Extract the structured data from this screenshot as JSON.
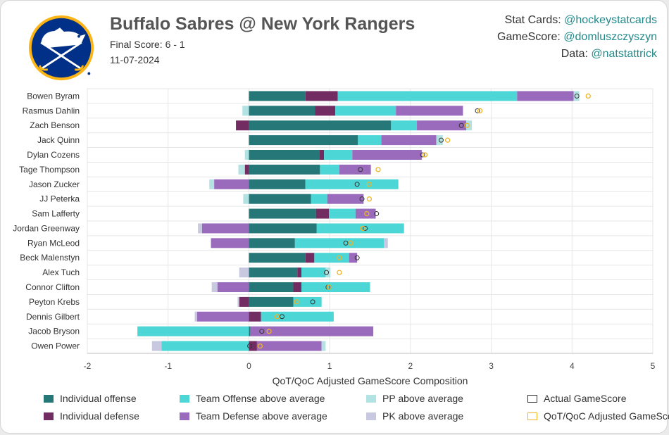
{
  "header": {
    "title": "Buffalo Sabres @ New York Rangers",
    "final_score": "Final Score: 6 - 1",
    "date": "11-07-2024"
  },
  "credits": [
    {
      "label": "Stat Cards: ",
      "handle": "@hockeystatcards"
    },
    {
      "label": "GameScore: ",
      "handle": "@domluszczyszyn"
    },
    {
      "label": "Data: ",
      "handle": "@natstattrick"
    }
  ],
  "colors": {
    "indiv_off": "#267878",
    "indiv_def": "#732c62",
    "team_off": "#4dd6d6",
    "team_def": "#9a6bbd",
    "pp": "#b2e2e2",
    "pk": "#c8c8e0",
    "actual_marker": "#333333",
    "adjusted_marker": "#f0b428",
    "logo_blue": "#003087",
    "logo_gold": "#fcb514"
  },
  "chart_data": {
    "type": "bar",
    "stacked": true,
    "orientation": "horizontal",
    "xlabel": "QoT/QoC Adjusted GameScore Composition",
    "xlim": [
      -2,
      5
    ],
    "xticks": [
      "-2",
      "-1",
      "0",
      "1",
      "2",
      "3",
      "4",
      "5"
    ],
    "grid": true,
    "legend_position": "bottom",
    "categories": [
      "Bowen Byram",
      "Rasmus Dahlin",
      "Zach Benson",
      "Jack Quinn",
      "Dylan Cozens",
      "Tage Thompson",
      "Jason Zucker",
      "JJ Peterka",
      "Sam Lafferty",
      "Jordan Greenway",
      "Ryan McLeod",
      "Beck Malenstyn",
      "Alex Tuch",
      "Connor Clifton",
      "Peyton Krebs",
      "Dennis Gilbert",
      "Jacob Bryson",
      "Owen Power"
    ],
    "series": [
      {
        "name": "Individual offense",
        "key": "indiv_off",
        "values": [
          0.7,
          0.82,
          1.76,
          1.35,
          0.87,
          0.88,
          0.7,
          0.77,
          0.83,
          0.84,
          0.57,
          0.7,
          0.6,
          0.55,
          0.55,
          0,
          0.02,
          0
        ]
      },
      {
        "name": "Individual defense",
        "key": "indiv_def",
        "values": [
          0.4,
          0.25,
          -0.16,
          0,
          0.06,
          -0.05,
          0,
          0,
          0.16,
          0,
          0,
          0.11,
          0.05,
          0.1,
          -0.12,
          0.15,
          0,
          0.1
        ]
      },
      {
        "name": "Team Offense above average",
        "key": "team_off",
        "values": [
          2.22,
          0.75,
          0.32,
          0.29,
          0.35,
          0.24,
          1.15,
          0.2,
          0.33,
          1.08,
          1.1,
          0.43,
          0.3,
          0.85,
          0.35,
          0.9,
          -1.38,
          -1.08
        ]
      },
      {
        "name": "Team Defense above average",
        "key": "team_def",
        "values": [
          0.7,
          0.83,
          0.61,
          0.68,
          0.86,
          0.39,
          -0.43,
          0.45,
          0.25,
          -0.58,
          -0.47,
          0.1,
          0,
          -0.39,
          0,
          -0.64,
          1.52,
          0.8
        ]
      },
      {
        "name": "PP above average",
        "key": "pp",
        "values": [
          0.07,
          -0.08,
          0.07,
          0.08,
          -0.05,
          -0.08,
          -0.06,
          -0.07,
          0,
          0,
          0,
          0,
          0.06,
          0,
          0,
          0,
          0,
          0.05
        ]
      },
      {
        "name": "PK above average",
        "key": "pk",
        "values": [
          0,
          0,
          0,
          0,
          0,
          0,
          0,
          0,
          0,
          -0.05,
          0.05,
          0,
          -0.12,
          -0.07,
          -0.02,
          -0.03,
          0,
          -0.12
        ]
      }
    ],
    "actual_gamescore": [
      4.06,
      2.83,
      2.63,
      2.38,
      2.15,
      1.38,
      1.34,
      1.4,
      1.58,
      1.44,
      1.2,
      1.34,
      0.96,
      0.98,
      0.79,
      0.41,
      0.16,
      0.01
    ],
    "adjusted_gamescore": [
      4.2,
      2.86,
      2.7,
      2.46,
      2.18,
      1.6,
      1.49,
      1.49,
      1.46,
      1.41,
      1.26,
      1.12,
      1.12,
      0.99,
      0.59,
      0.35,
      0.25,
      0.14
    ]
  },
  "legend": [
    {
      "label": "Individual offense",
      "swatch": "indiv_off",
      "kind": "fill"
    },
    {
      "label": "Team Offense above average",
      "swatch": "team_off",
      "kind": "fill"
    },
    {
      "label": "PP above average",
      "swatch": "pp",
      "kind": "fill"
    },
    {
      "label": "Actual GameScore",
      "swatch": "actual_marker",
      "kind": "outline"
    },
    {
      "label": "Individual defense",
      "swatch": "indiv_def",
      "kind": "fill"
    },
    {
      "label": "Team Defense above average",
      "swatch": "team_def",
      "kind": "fill"
    },
    {
      "label": "PK above average",
      "swatch": "pk",
      "kind": "fill"
    },
    {
      "label": "QoT/QoC Adjusted GameScore",
      "swatch": "adjusted_marker",
      "kind": "outline"
    }
  ]
}
